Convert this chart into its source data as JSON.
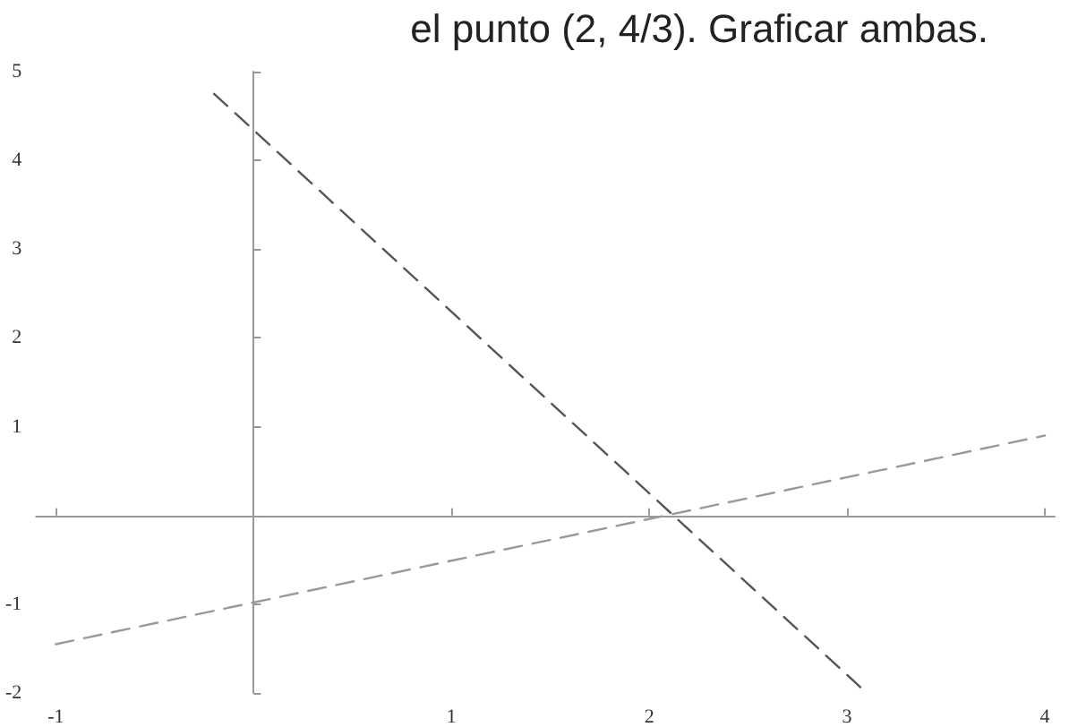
{
  "chart_data": {
    "type": "line",
    "annotations": [
      "el punto (2, 4/3). Graficar ambas."
    ],
    "series": [
      {
        "color": "#555555",
        "x": [
          -0.2,
          3.1
        ],
        "values": [
          4.75,
          -2
        ]
      },
      {
        "color": "#999999",
        "x": [
          -1,
          4
        ],
        "values": [
          -1.45,
          0.9
        ]
      }
    ],
    "xlim": [
      -1.1,
      4.05
    ],
    "ylim": [
      -2,
      5
    ],
    "xticks": [
      -1,
      {
        "value": 0,
        "label": null
      },
      1,
      2,
      3,
      4
    ],
    "yticks": [
      -2,
      -1,
      {
        "value": 0,
        "label": null
      },
      1,
      2,
      3,
      4,
      5
    ],
    "marker": "none",
    "line_style": "dashed"
  }
}
